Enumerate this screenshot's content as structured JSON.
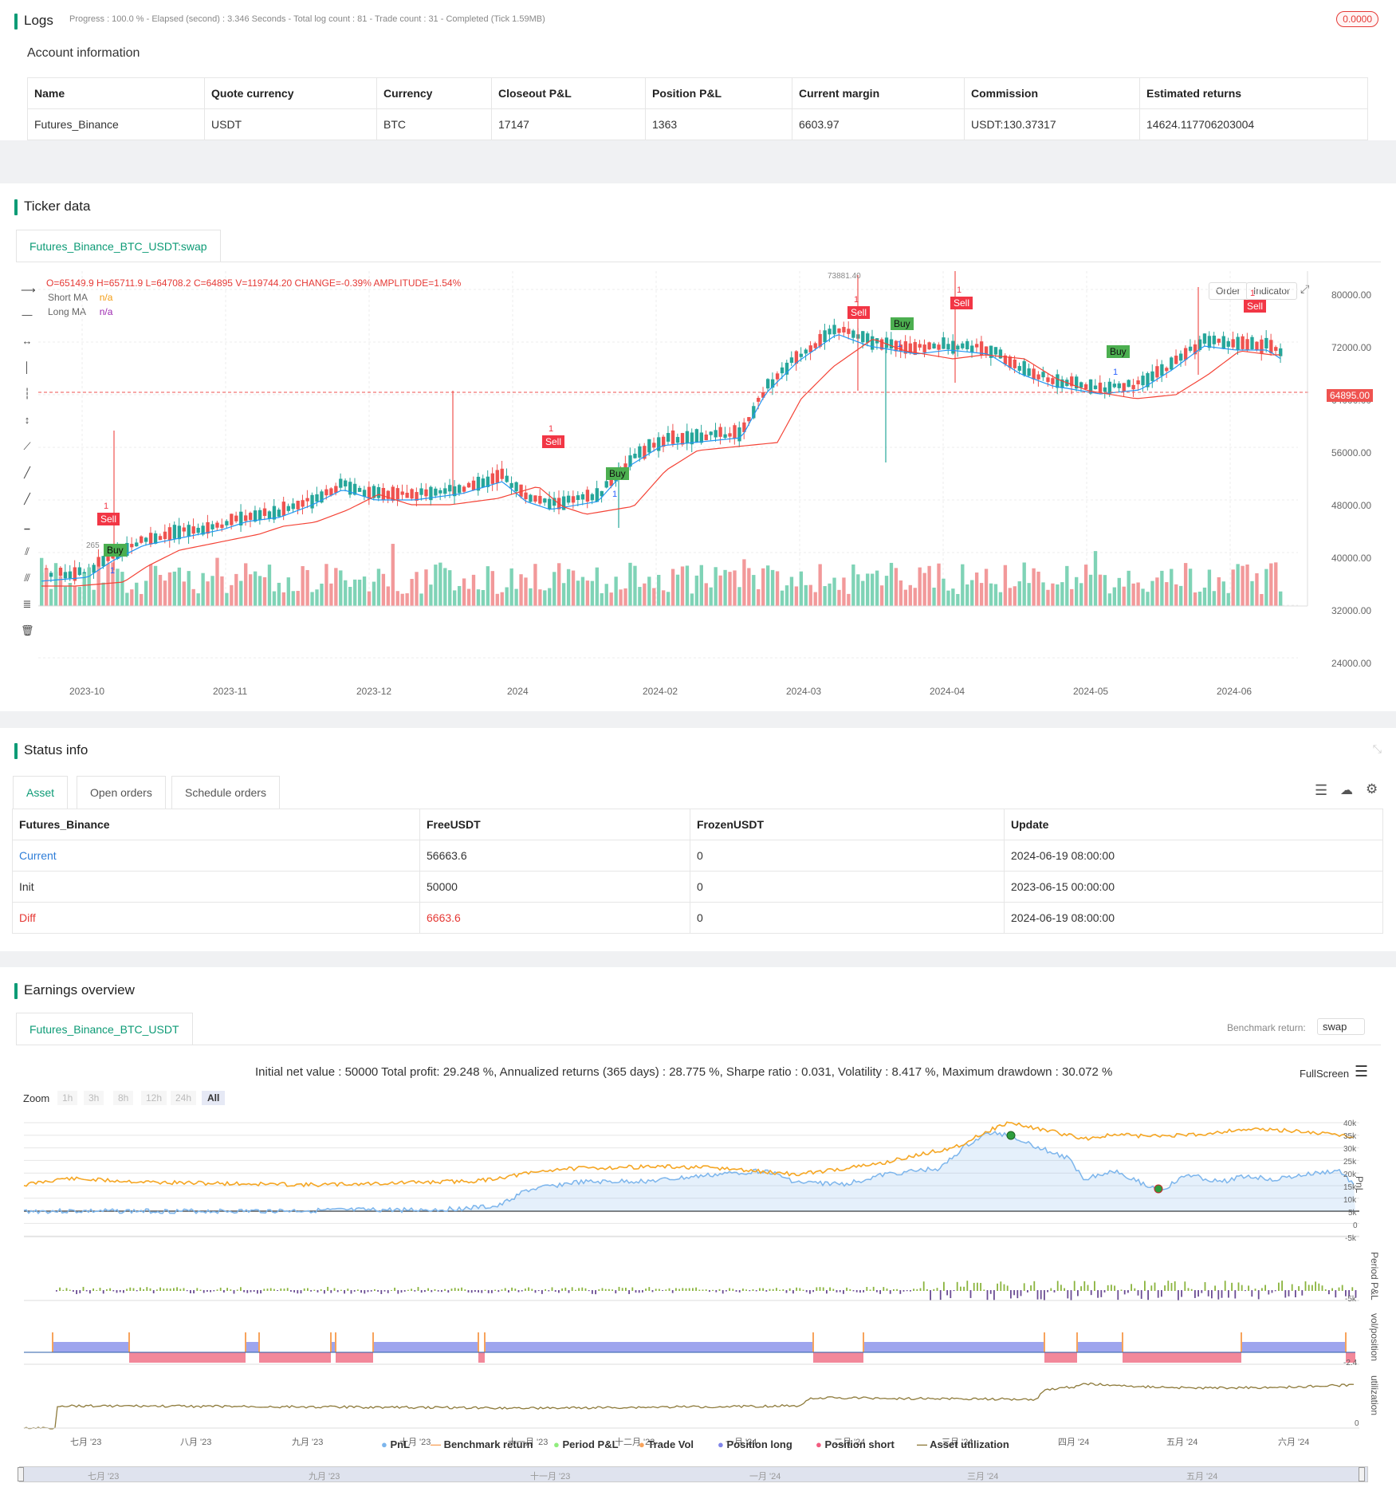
{
  "logs": {
    "title": "Logs",
    "status_line": "Progress : 100.0 % - Elapsed (second) : 3.346  Seconds - Total log count : 81 - Trade count : 31 - Completed (Tick 1.59MB)",
    "badge": "0.0000"
  },
  "account": {
    "title": "Account information",
    "columns": [
      "Name",
      "Quote currency",
      "Currency",
      "Closeout P&L",
      "Position P&L",
      "Current margin",
      "Commission",
      "Estimated returns"
    ],
    "row": [
      "Futures_Binance",
      "USDT",
      "BTC",
      "17147",
      "1363",
      "6603.97",
      "USDT:130.37317",
      "14624.117706203004"
    ]
  },
  "ticker": {
    "title": "Ticker data",
    "tab": "Futures_Binance_BTC_USDT:swap",
    "ohlc_line": "O=65149.9 H=65711.9 L=64708.2 C=64895 V=119744.20 CHANGE=-0.39% AMPLITUDE=1.54%",
    "short_ma_label": "Short MA",
    "short_ma_value": "n/a",
    "long_ma_label": "Long MA",
    "long_ma_value": "n/a",
    "order_btn": "Order",
    "indicator_btn": "Indicator",
    "price_ticks": [
      "80000.00",
      "72000.00",
      "64000.00",
      "56000.00",
      "48000.00",
      "40000.00",
      "32000.00",
      "24000.00"
    ],
    "current_price": "64895.00",
    "high_marker": "73881.40",
    "low_marker": "265",
    "date_ticks": [
      "2023-10",
      "2023-11",
      "2023-12",
      "2024",
      "2024-02",
      "2024-03",
      "2024-04",
      "2024-05",
      "2024-06"
    ],
    "signals": [
      {
        "label": "Sell",
        "count": "1",
        "kind": "sell"
      },
      {
        "label": "Buy",
        "count": "1",
        "kind": "buy"
      },
      {
        "label": "Sell",
        "count": "1",
        "kind": "sell"
      },
      {
        "label": "Buy",
        "count": "1",
        "kind": "buy"
      },
      {
        "label": "Sell",
        "count": "1",
        "kind": "sell"
      },
      {
        "label": "Buy",
        "count": "1",
        "kind": "buy"
      },
      {
        "label": "Sell",
        "count": "1",
        "kind": "sell"
      },
      {
        "label": "Buy",
        "count": "1",
        "kind": "buy"
      },
      {
        "label": "Sell",
        "count": "1",
        "kind": "sell"
      }
    ]
  },
  "status": {
    "title": "Status info",
    "tabs": [
      "Asset",
      "Open orders",
      "Schedule orders"
    ],
    "columns": [
      "Futures_Binance",
      "FreeUSDT",
      "FrozenUSDT",
      "Update"
    ],
    "rows": [
      [
        "Current",
        "56663.6",
        "0",
        "2024-06-19 08:00:00"
      ],
      [
        "Init",
        "50000",
        "0",
        "2023-06-15 00:00:00"
      ],
      [
        "Diff",
        "6663.6",
        "0",
        "2024-06-19 08:00:00"
      ]
    ]
  },
  "earnings": {
    "title": "Earnings overview",
    "tab": "Futures_Binance_BTC_USDT",
    "benchmark_label": "Benchmark return:",
    "benchmark_value": "swap",
    "summary": "Initial net value : 50000 Total profit: 29.248 %, Annualized returns (365 days) : 28.775 %, Sharpe ratio : 0.031, Volatility : 8.417 %, Maximum drawdown : 30.072 %",
    "fullscreen": "FullScreen",
    "zoom_label": "Zoom",
    "zoom_options": [
      "1h",
      "3h",
      "8h",
      "12h",
      "24h",
      "All"
    ],
    "pnl_ticks": [
      "40k",
      "35k",
      "30k",
      "25k",
      "20k",
      "15k",
      "10k",
      "5k",
      "0",
      "-5k"
    ],
    "period_tick": "-5k",
    "pos_tick": "-2.4",
    "util_tick": "0",
    "y_titles": [
      "PnL",
      "Period P&L",
      "vol/position",
      "utilization"
    ],
    "month_ticks": [
      "七月 '23",
      "八月 '23",
      "九月 '23",
      "十月 '23",
      "十一月 '23",
      "十二月 '23",
      "一月 '24",
      "二月 '24",
      "三月 '24",
      "四月 '24",
      "五月 '24",
      "六月 '24"
    ],
    "navigator_ticks": [
      "七月 '23",
      "九月 '23",
      "十一月 '23",
      "一月 '24",
      "三月 '24",
      "五月 '24"
    ],
    "legend": [
      {
        "label": "PnL",
        "color": "#7cb5ec"
      },
      {
        "label": "Benchmark return",
        "color": "#f7a35c"
      },
      {
        "label": "Period P&L",
        "color": "#90ed7d"
      },
      {
        "label": "Trade Vol",
        "color": "#f7a35c"
      },
      {
        "label": "Position long",
        "color": "#8085e9"
      },
      {
        "label": "Position short",
        "color": "#f15c80"
      },
      {
        "label": "Asset utilization",
        "color": "#8d7a3a"
      }
    ]
  },
  "colors": {
    "accent": "#0d9b76",
    "up": "#26a69a",
    "down": "#ef5350",
    "short_ma": "#2196f3",
    "long_ma": "#f44336"
  }
}
